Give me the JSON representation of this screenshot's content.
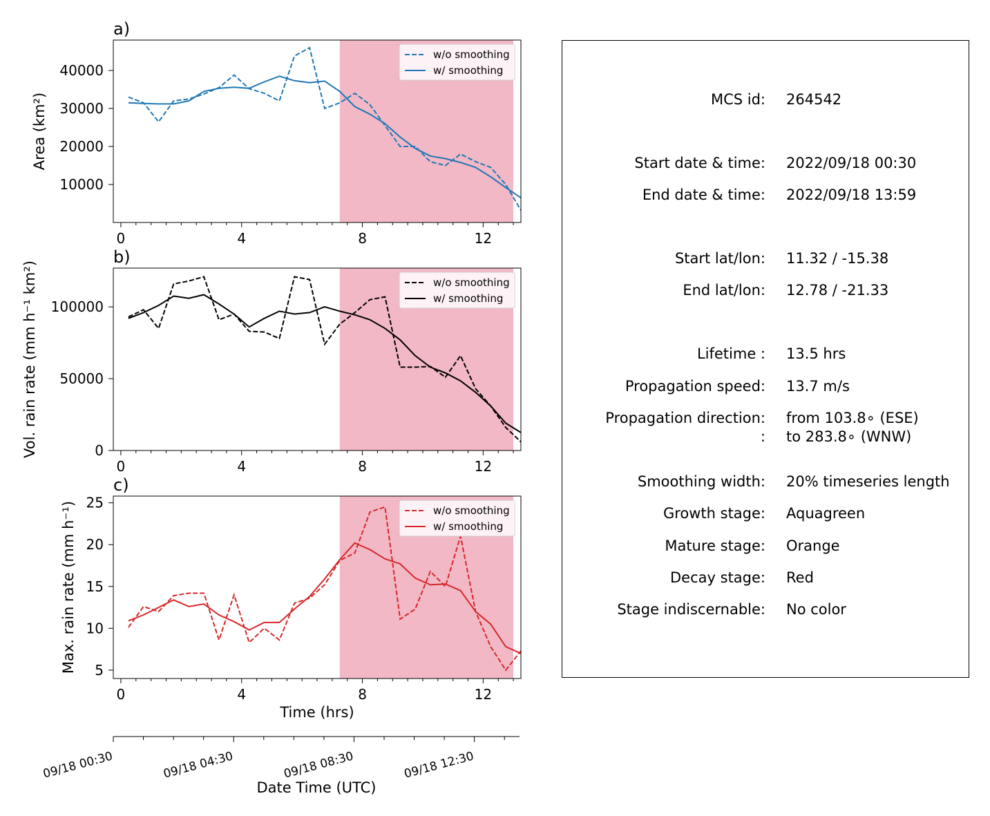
{
  "chart_data": [
    {
      "panel_label": "a)",
      "type": "line",
      "ylabel": "Area  (km²)",
      "ylim": [
        0,
        48000
      ],
      "yticks": [
        10000,
        20000,
        30000,
        40000
      ],
      "xlim": [
        -0.25,
        13.25
      ],
      "xticks": [
        0,
        4,
        8,
        12
      ],
      "shaded_xrange": [
        7.25,
        13.25
      ],
      "legend_position": "top-right",
      "color": "#1f77b4",
      "x": [
        0.25,
        0.75,
        1.25,
        1.75,
        2.25,
        2.75,
        3.25,
        3.75,
        4.25,
        4.75,
        5.25,
        5.75,
        6.25,
        6.75,
        7.25,
        7.75,
        8.25,
        8.75,
        9.25,
        9.75,
        10.25,
        10.75,
        11.25,
        11.75,
        12.25,
        12.75,
        13.25
      ],
      "series": [
        {
          "name": "w/o smoothing",
          "style": "dashed",
          "values": [
            33000,
            31500,
            26500,
            32000,
            32500,
            33800,
            35500,
            38800,
            35200,
            34000,
            32000,
            43800,
            46000,
            30000,
            31500,
            34000,
            31000,
            25500,
            20000,
            20000,
            16000,
            15000,
            18000,
            16000,
            14500,
            10000,
            3200
          ]
        },
        {
          "name": "w/ smoothing",
          "style": "solid",
          "values": [
            31500,
            31300,
            31200,
            31200,
            32000,
            34500,
            35300,
            35600,
            35300,
            37000,
            38500,
            37300,
            36800,
            37200,
            34500,
            30500,
            28500,
            26000,
            22500,
            19500,
            17500,
            16800,
            15800,
            14500,
            12000,
            9200,
            6500
          ]
        }
      ]
    },
    {
      "panel_label": "b)",
      "type": "line",
      "ylabel": "Vol. rain rate (mm h⁻¹ km²)",
      "ylim": [
        0,
        127000
      ],
      "yticks": [
        0,
        50000,
        100000
      ],
      "xlim": [
        -0.25,
        13.25
      ],
      "xticks": [
        0,
        4,
        8,
        12
      ],
      "shaded_xrange": [
        7.25,
        13.25
      ],
      "legend_position": "top-right",
      "color": "#000000",
      "x": [
        0.25,
        0.75,
        1.25,
        1.75,
        2.25,
        2.75,
        3.25,
        3.75,
        4.25,
        4.75,
        5.25,
        5.75,
        6.25,
        6.75,
        7.25,
        7.75,
        8.25,
        8.75,
        9.25,
        9.75,
        10.25,
        10.75,
        11.25,
        11.75,
        12.25,
        12.75,
        13.25
      ],
      "series": [
        {
          "name": "w/o smoothing",
          "style": "dashed",
          "values": [
            93000,
            98000,
            85000,
            116000,
            118000,
            121000,
            91000,
            95000,
            83000,
            82500,
            78000,
            121000,
            119000,
            74000,
            88000,
            96000,
            105000,
            107000,
            58000,
            58000,
            58500,
            51000,
            66000,
            43000,
            31000,
            16000,
            6000
          ]
        },
        {
          "name": "w/ smoothing",
          "style": "solid",
          "values": [
            92000,
            96000,
            101000,
            107500,
            106000,
            108500,
            102000,
            95000,
            86000,
            92000,
            97000,
            95000,
            96000,
            100000,
            97000,
            94500,
            91000,
            85000,
            77000,
            66000,
            58000,
            54000,
            48500,
            40500,
            31000,
            19000,
            12500
          ]
        }
      ]
    },
    {
      "panel_label": "c)",
      "type": "line",
      "ylabel": "Max. rain rate  (mm h⁻¹)",
      "xlabel": "Time (hrs)",
      "ylim": [
        4,
        25.8
      ],
      "yticks": [
        5,
        10,
        15,
        20,
        25
      ],
      "xlim": [
        -0.25,
        13.25
      ],
      "xticks": [
        0,
        4,
        8,
        12
      ],
      "shaded_xrange": [
        7.25,
        13.25
      ],
      "legend_position": "top-right",
      "color": "#d62728",
      "x": [
        0.25,
        0.75,
        1.25,
        1.75,
        2.25,
        2.75,
        3.25,
        3.75,
        4.25,
        4.75,
        5.25,
        5.75,
        6.25,
        6.75,
        7.25,
        7.75,
        8.25,
        8.75,
        9.25,
        9.75,
        10.25,
        10.75,
        11.25,
        11.75,
        12.25,
        12.75,
        13.25
      ],
      "series": [
        {
          "name": "w/o smoothing",
          "style": "dashed",
          "values": [
            10.1,
            12.6,
            12.0,
            13.9,
            14.2,
            14.2,
            8.6,
            14.0,
            8.3,
            10.0,
            8.6,
            13.0,
            13.6,
            15.2,
            18.1,
            19.0,
            23.9,
            24.5,
            11.1,
            12.3,
            16.8,
            15.0,
            21.0,
            12.0,
            7.8,
            5.0,
            7.3
          ]
        },
        {
          "name": "w/ smoothing",
          "style": "solid",
          "values": [
            10.9,
            11.6,
            12.5,
            13.4,
            12.6,
            12.9,
            11.6,
            10.8,
            9.8,
            10.7,
            10.7,
            12.3,
            13.8,
            15.9,
            18.2,
            20.2,
            19.4,
            18.3,
            17.7,
            16.0,
            15.2,
            15.3,
            14.5,
            12.0,
            10.5,
            7.8,
            7.0
          ]
        }
      ]
    }
  ],
  "date_axis": {
    "ticks": [
      "09/18 00:30",
      "09/18 04:30",
      "09/18 08:30",
      "09/18 12:30"
    ],
    "label": "Date Time (UTC)"
  },
  "info": {
    "mcs_id": {
      "key": "MCS id:",
      "value": "264542"
    },
    "start_dt": {
      "key": "Start date & time:",
      "value": "2022/09/18 00:30"
    },
    "end_dt": {
      "key": "End date & time:",
      "value": "2022/09/18 13:59"
    },
    "start_ll": {
      "key": "Start lat/lon:",
      "value": "11.32 / -15.38"
    },
    "end_ll": {
      "key": "End lat/lon:",
      "value": "12.78 / -21.33"
    },
    "lifetime": {
      "key": "Lifetime :",
      "value": "13.5 hrs"
    },
    "speed": {
      "key": "Propagation speed:",
      "value": "13.7 m/s"
    },
    "direction": {
      "key": "Propagation direction:",
      "value": "from 103.8∘ (ESE)",
      "key2": ":",
      "value2": "to   283.8∘ (WNW)"
    },
    "smoothing": {
      "key": "Smoothing width:",
      "value": "20% timeseries length"
    },
    "growth": {
      "key": "Growth stage:",
      "value": "Aquagreen"
    },
    "mature": {
      "key": "Mature stage:",
      "value": "Orange"
    },
    "decay": {
      "key": "Decay stage:",
      "value": "Red"
    },
    "indiscernable": {
      "key": "Stage indiscernable:",
      "value": "No color"
    }
  },
  "colors": {
    "shade": "#f2b8c6",
    "area": "#1f77b4",
    "volume": "#000000",
    "max": "#d62728"
  }
}
